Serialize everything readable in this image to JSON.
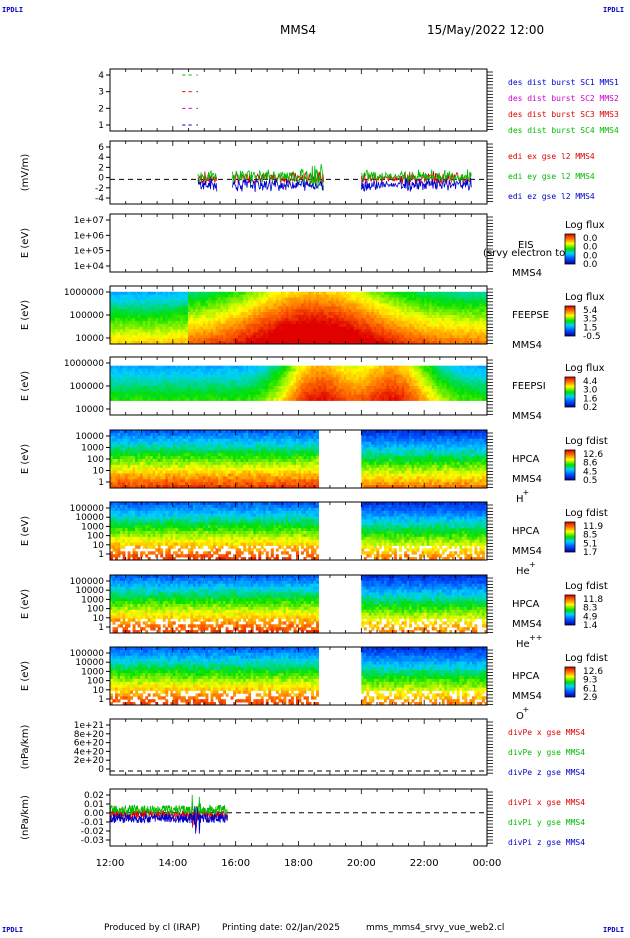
{
  "header": {
    "corner_tl": "IPDLI",
    "corner_tr": "IPDLI",
    "corner_bl": "IPDLI",
    "corner_br": "IPDLI",
    "mission": "MMS4",
    "datetime": "15/May/2022 12:00"
  },
  "footer": {
    "credit": "Produced by cl (IRAP)",
    "printing_date": "Printing date: 02/Jan/2025",
    "script_name": "mms_mms4_srvy_vue_web2.cl"
  },
  "colors": {
    "c1_black": "#000000",
    "c2_magenta": "#cc00cc",
    "c3_red": "#dd0000",
    "c4_green": "#00bb00",
    "blue": "#0000cc"
  },
  "x_axis": {
    "ticks": [
      "12:00",
      "14:00",
      "16:00",
      "18:00",
      "20:00",
      "22:00",
      "00:00"
    ]
  },
  "chart_data": [
    {
      "type": "line",
      "panel": "burst",
      "ylabel": "",
      "ticks": [
        "4",
        "3",
        "2",
        "1"
      ],
      "ylim": [
        0.5,
        4.5
      ],
      "series": [
        {
          "name": "des dist burst SC1 MMS1",
          "color": "#0000cc",
          "y": 1,
          "segments": [
            [
              14.3,
              14.4
            ],
            [
              14.5,
              14.6
            ],
            [
              14.75,
              14.8
            ]
          ]
        },
        {
          "name": "des dist burst SC2 MMS2",
          "color": "#cc00cc",
          "y": 2,
          "segments": [
            [
              14.3,
              14.4
            ],
            [
              14.5,
              14.6
            ],
            [
              14.75,
              14.8
            ]
          ]
        },
        {
          "name": "des dist burst SC3 MMS3",
          "color": "#dd0000",
          "y": 3,
          "segments": [
            [
              14.3,
              14.4
            ],
            [
              14.5,
              14.6
            ],
            [
              14.75,
              14.8
            ]
          ]
        },
        {
          "name": "des dist burst SC4 MMS4",
          "color": "#00bb00",
          "y": 4,
          "segments": [
            [
              14.3,
              14.4
            ],
            [
              14.5,
              14.6
            ],
            [
              14.75,
              14.8
            ]
          ]
        }
      ]
    },
    {
      "type": "line",
      "panel": "edi",
      "ylabel": "(mV/m)",
      "ticks": [
        "6",
        "4",
        "2",
        "0",
        "-2",
        "-4"
      ],
      "ylim": [
        -4.5,
        7
      ],
      "series": [
        {
          "name": "edi ex gse l2 MMS4",
          "color": "#dd0000"
        },
        {
          "name": "edi ey gse l2 MMS4",
          "color": "#00bb00"
        },
        {
          "name": "edi ez gse l2 MMS4",
          "color": "#0000cc"
        }
      ]
    },
    {
      "type": "heatmap",
      "panel": "eis",
      "ylabel": "E (eV)",
      "ticks": [
        "1e+07",
        "1e+06",
        "1e+05",
        "1e+04"
      ],
      "instrument": "EIS",
      "species": "(srvy electron to",
      "spacecraft": "MMS4",
      "cbar_title": "Log flux",
      "cbar_ticks": [
        "0.0",
        "0.0",
        "0.0",
        "0.0"
      ]
    },
    {
      "type": "heatmap",
      "panel": "feepse",
      "ylabel": "E (eV)",
      "ticks": [
        "1000000",
        "100000",
        "10000"
      ],
      "instrument": "FEEPSE",
      "spacecraft": "MMS4",
      "cbar_title": "Log flux",
      "cbar_ticks": [
        "5.4",
        "3.5",
        "1.5",
        "-0.5"
      ]
    },
    {
      "type": "heatmap",
      "panel": "feepsi",
      "ylabel": "E (eV)",
      "ticks": [
        "1000000",
        "100000",
        "10000"
      ],
      "instrument": "FEEPSI",
      "spacecraft": "MMS4",
      "cbar_title": "Log flux",
      "cbar_ticks": [
        "4.4",
        "3.0",
        "1.6",
        "0.2"
      ]
    },
    {
      "type": "heatmap",
      "panel": "hpca_h",
      "ylabel": "E (eV)",
      "ticks": [
        "10000",
        "1000",
        "100",
        "10",
        "1"
      ],
      "instrument": "HPCA",
      "spacecraft": "MMS4",
      "species_base": "H",
      "species_sup": "+",
      "cbar_title": "Log fdist",
      "cbar_ticks": [
        "12.6",
        "8.6",
        "4.5",
        "0.5"
      ]
    },
    {
      "type": "heatmap",
      "panel": "hpca_he",
      "ylabel": "E (eV)",
      "ticks": [
        "100000",
        "10000",
        "1000",
        "100",
        "10",
        "1"
      ],
      "instrument": "HPCA",
      "spacecraft": "MMS4",
      "species_base": "He",
      "species_sup": "+",
      "cbar_title": "Log fdist",
      "cbar_ticks": [
        "11.9",
        "8.5",
        "5.1",
        "1.7"
      ]
    },
    {
      "type": "heatmap",
      "panel": "hpca_hepp",
      "ylabel": "E (eV)",
      "ticks": [
        "100000",
        "10000",
        "1000",
        "100",
        "10",
        "1"
      ],
      "instrument": "HPCA",
      "spacecraft": "MMS4",
      "species_base": "He",
      "species_sup": "++",
      "cbar_title": "Log fdist",
      "cbar_ticks": [
        "11.8",
        "8.3",
        "4.9",
        "1.4"
      ]
    },
    {
      "type": "heatmap",
      "panel": "hpca_o",
      "ylabel": "E (eV)",
      "ticks": [
        "100000",
        "10000",
        "1000",
        "100",
        "10",
        "1"
      ],
      "instrument": "HPCA",
      "spacecraft": "MMS4",
      "species_base": "O",
      "species_sup": "+",
      "cbar_title": "Log fdist",
      "cbar_ticks": [
        "12.6",
        "9.3",
        "6.1",
        "2.9"
      ]
    },
    {
      "type": "line",
      "panel": "divpe",
      "ylabel": "(nPa/km)",
      "ticks": [
        "1e+21",
        "8e+20",
        "6e+20",
        "4e+20",
        "2e+20",
        "0"
      ],
      "ylim": [
        -5e+19,
        1.05e+21
      ],
      "series": [
        {
          "name": "divPe x gse MMS4",
          "color": "#dd0000"
        },
        {
          "name": "divPe y gse MMS4",
          "color": "#00bb00"
        },
        {
          "name": "divPe z gse MMS4",
          "color": "#0000cc"
        }
      ]
    },
    {
      "type": "line",
      "panel": "divpi",
      "ylabel": "(nPa/km)",
      "ticks": [
        "0.02",
        "0.01",
        "0.00",
        "-0.01",
        "-0.02",
        "-0.03"
      ],
      "ylim": [
        -0.035,
        0.025
      ],
      "series": [
        {
          "name": "divPi x gse MMS4",
          "color": "#dd0000"
        },
        {
          "name": "divPi y gse MMS4",
          "color": "#00bb00"
        },
        {
          "name": "divPi z gse MMS4",
          "color": "#0000cc"
        }
      ]
    }
  ]
}
